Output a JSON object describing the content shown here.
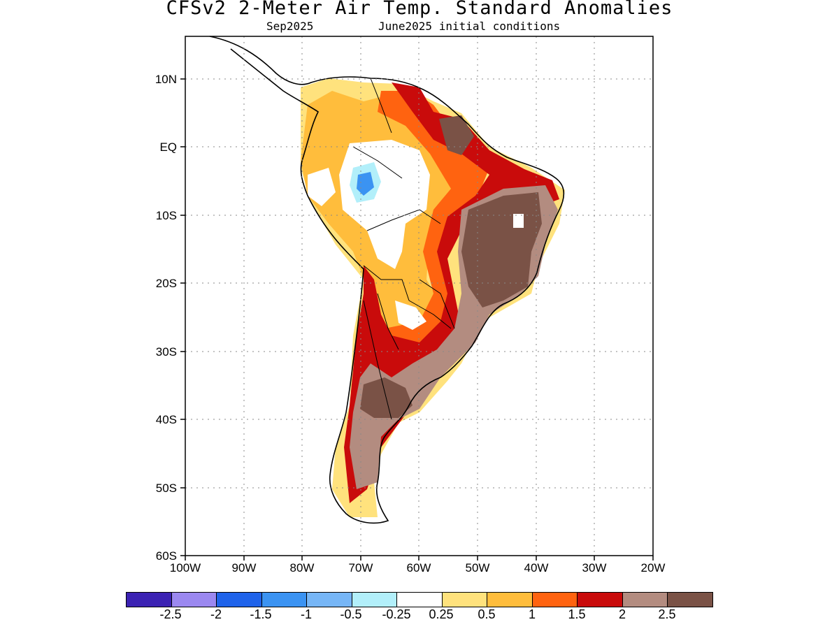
{
  "header": {
    "title": "CFSv2 2-Meter Air Temp. Standard Anomalies",
    "month": "Sep2025",
    "init": "June2025 initial conditions"
  },
  "axes": {
    "lat_labels": [
      "10N",
      "EQ",
      "10S",
      "20S",
      "30S",
      "40S",
      "50S",
      "60S"
    ],
    "lon_labels": [
      "100W",
      "90W",
      "80W",
      "70W",
      "60W",
      "50W",
      "40W",
      "30W",
      "20W"
    ]
  },
  "legend": {
    "labels": [
      "-2.5",
      "-2",
      "-1.5",
      "-1",
      "-0.5",
      "-0.25",
      "0.25",
      "0.5",
      "1",
      "1.5",
      "2",
      "2.5"
    ],
    "colors": [
      "#3b22b3",
      "#9b88f0",
      "#1f63ea",
      "#3b93f2",
      "#77b6f6",
      "#b2effa",
      "#ffffff",
      "#ffe27d",
      "#ffbd3c",
      "#ff6310",
      "#c90b0b",
      "#b38c80",
      "#7a5246"
    ]
  },
  "chart_data": {
    "type": "heatmap",
    "variable": "2-Meter Air Temp. Standard Anomalies",
    "lon_range": [
      -100,
      -20
    ],
    "lat_range": [
      -60,
      15
    ],
    "regions": [
      {
        "area": "Northeast Brazil interior",
        "anomaly_class": "> 2.5"
      },
      {
        "area": "Central-west Argentina",
        "anomaly_class": "> 2.5"
      },
      {
        "area": "Patagonia",
        "anomaly_class": "2 to 2.5"
      },
      {
        "area": "Southern Brazil / Uruguay",
        "anomaly_class": "2 to 2.5"
      },
      {
        "area": "Eastern Amazon / Guianas",
        "anomaly_class": "1.5 to 2.5"
      },
      {
        "area": "Western Amazon",
        "anomaly_class": "-1 to -0.25"
      },
      {
        "area": "Central Amazon",
        "anomaly_class": "-0.25 to 0.25"
      },
      {
        "area": "Colombia / Venezuela",
        "anomaly_class": "0.5 to 1.5"
      },
      {
        "area": "Chaco / Paraguay",
        "anomaly_class": "-0.25 to 0.5"
      }
    ]
  }
}
